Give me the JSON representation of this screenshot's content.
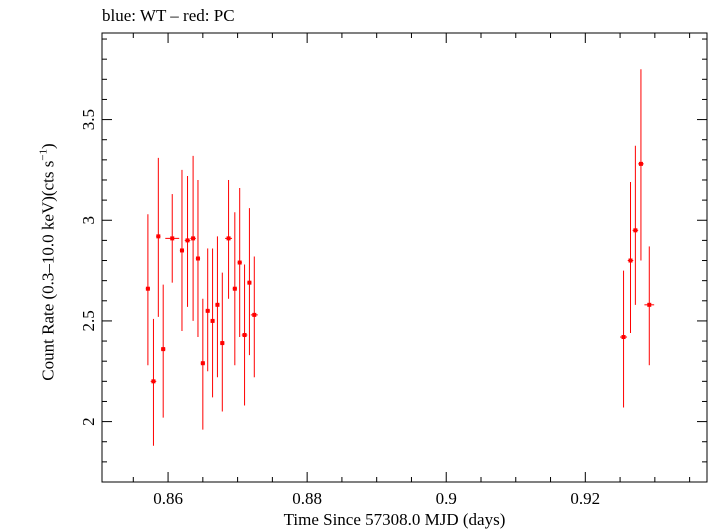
{
  "chart_data": {
    "type": "scatter",
    "title": "blue: WT – red: PC",
    "xlabel": "Time Since 57308.0 MJD (days)",
    "ylabel_main": "Count Rate (0.3–10.0 keV)(cts s",
    "ylabel_sup": "−1",
    "ylabel_end": ")",
    "xlim": [
      0.8505,
      0.9375
    ],
    "ylim": [
      1.7,
      3.93
    ],
    "xticks": [
      0.86,
      0.88,
      0.9,
      0.92
    ],
    "xtick_labels": [
      "0.86",
      "0.88",
      "0.9",
      "0.92"
    ],
    "yticks": [
      2,
      2.5,
      3,
      3.5
    ],
    "ytick_labels": [
      "2",
      "2.5",
      "3",
      "3.5"
    ],
    "series": [
      {
        "name": "PC",
        "color": "#ff0000",
        "points": [
          {
            "x": 0.8571,
            "y": 2.66,
            "xerr": 0.0003,
            "ylo": 2.28,
            "yhi": 3.03
          },
          {
            "x": 0.8579,
            "y": 2.2,
            "xerr": 0.0004,
            "ylo": 1.88,
            "yhi": 2.51
          },
          {
            "x": 0.8586,
            "y": 2.92,
            "xerr": 0.0003,
            "ylo": 2.52,
            "yhi": 3.31
          },
          {
            "x": 0.8593,
            "y": 2.36,
            "xerr": 0.0003,
            "ylo": 2.02,
            "yhi": 2.68
          },
          {
            "x": 0.8606,
            "y": 2.91,
            "xerr": 0.001,
            "ylo": 2.69,
            "yhi": 3.13
          },
          {
            "x": 0.862,
            "y": 2.85,
            "xerr": 0.0003,
            "ylo": 2.45,
            "yhi": 3.25
          },
          {
            "x": 0.8628,
            "y": 2.9,
            "xerr": 0.0004,
            "ylo": 2.57,
            "yhi": 3.22
          },
          {
            "x": 0.8636,
            "y": 2.91,
            "xerr": 0.0004,
            "ylo": 2.5,
            "yhi": 3.32
          },
          {
            "x": 0.8643,
            "y": 2.81,
            "xerr": 0.0003,
            "ylo": 2.42,
            "yhi": 3.2
          },
          {
            "x": 0.865,
            "y": 2.29,
            "xerr": 0.0003,
            "ylo": 1.96,
            "yhi": 2.61
          },
          {
            "x": 0.8657,
            "y": 2.55,
            "xerr": 0.0003,
            "ylo": 2.25,
            "yhi": 2.86
          },
          {
            "x": 0.8664,
            "y": 2.5,
            "xerr": 0.0003,
            "ylo": 2.12,
            "yhi": 2.86
          },
          {
            "x": 0.8671,
            "y": 2.58,
            "xerr": 0.0003,
            "ylo": 2.22,
            "yhi": 2.92
          },
          {
            "x": 0.8678,
            "y": 2.39,
            "xerr": 0.0003,
            "ylo": 2.05,
            "yhi": 2.74
          },
          {
            "x": 0.8687,
            "y": 2.91,
            "xerr": 0.0005,
            "ylo": 2.61,
            "yhi": 3.2
          },
          {
            "x": 0.8696,
            "y": 2.66,
            "xerr": 0.0003,
            "ylo": 2.28,
            "yhi": 3.04
          },
          {
            "x": 0.8703,
            "y": 2.79,
            "xerr": 0.0003,
            "ylo": 2.42,
            "yhi": 3.16
          },
          {
            "x": 0.871,
            "y": 2.43,
            "xerr": 0.0004,
            "ylo": 2.08,
            "yhi": 2.78
          },
          {
            "x": 0.8717,
            "y": 2.69,
            "xerr": 0.0003,
            "ylo": 2.33,
            "yhi": 3.06
          },
          {
            "x": 0.8724,
            "y": 2.53,
            "xerr": 0.0005,
            "ylo": 2.22,
            "yhi": 2.82
          },
          {
            "x": 0.9255,
            "y": 2.42,
            "xerr": 0.0005,
            "ylo": 2.07,
            "yhi": 2.75
          },
          {
            "x": 0.9265,
            "y": 2.8,
            "xerr": 0.0004,
            "ylo": 2.44,
            "yhi": 3.19
          },
          {
            "x": 0.9272,
            "y": 2.95,
            "xerr": 0.0004,
            "ylo": 2.58,
            "yhi": 3.37
          },
          {
            "x": 0.928,
            "y": 3.28,
            "xerr": 0.0004,
            "ylo": 2.8,
            "yhi": 3.75
          },
          {
            "x": 0.9292,
            "y": 2.58,
            "xerr": 0.0007,
            "ylo": 2.28,
            "yhi": 2.87
          }
        ]
      }
    ]
  }
}
